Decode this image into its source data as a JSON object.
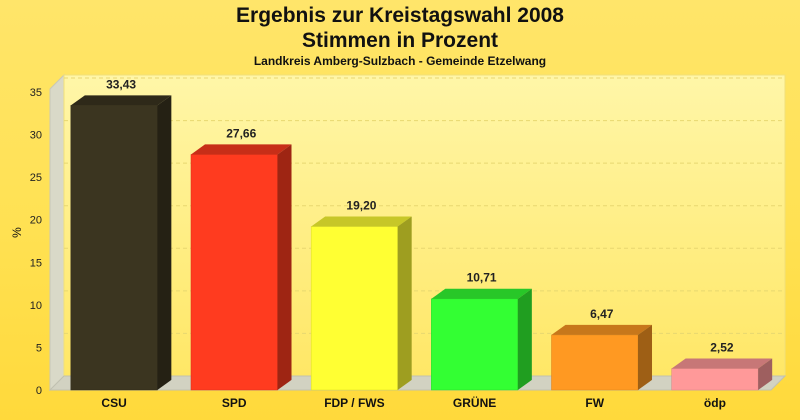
{
  "header": {
    "title": "Ergebnis zur Kreistagswahl 2008",
    "subtitle": "Stimmen in Prozent",
    "caption": "Landkreis Amberg-Sulzbach - Gemeinde Etzelwang"
  },
  "chart_data": {
    "type": "bar",
    "title": "Ergebnis zur Kreistagswahl 2008",
    "subtitle": "Stimmen in Prozent",
    "caption": "Landkreis Amberg-Sulzbach - Gemeinde Etzelwang",
    "xlabel": "",
    "ylabel": "%",
    "ylim": [
      0,
      37
    ],
    "yticks": [
      0,
      5,
      10,
      15,
      20,
      25,
      30,
      35
    ],
    "grid": true,
    "legend": "none",
    "categories": [
      "CSU",
      "SPD",
      "FDP / FWS",
      "GRÜNE",
      "FW",
      "ödp"
    ],
    "values": [
      33.43,
      27.66,
      19.2,
      10.71,
      6.47,
      2.52
    ],
    "value_labels": [
      "33,43",
      "27,66",
      "19,20",
      "10,71",
      "6,47",
      "2,52"
    ],
    "colors": [
      "#3b3520",
      "#ff3b1f",
      "#ffff33",
      "#33ff33",
      "#ff9922",
      "#ff9999"
    ]
  }
}
